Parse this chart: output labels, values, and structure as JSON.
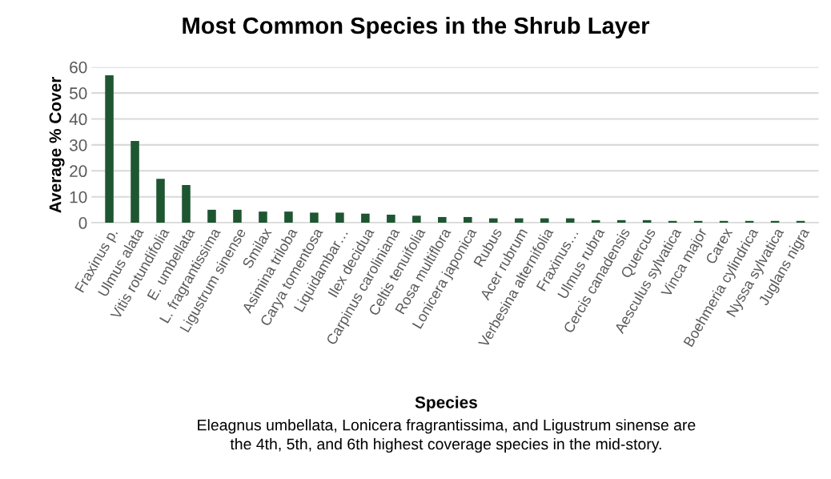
{
  "chart_data": {
    "type": "bar",
    "title": "Most Common Species in the Shrub Layer",
    "xlabel": "Species",
    "ylabel": "Average % Cover",
    "categories": [
      "Fraxinus p.",
      "Ulmus alata",
      "Vitis rotundifolia",
      "E. umbellata",
      "L. fragrantissima",
      "Ligustrum sinense",
      "Smilax",
      "Asimina triloba",
      "Carya tomentosa",
      "Liquidambar…",
      "Ilex decidua",
      "Carpinus caroliniana",
      "Celtis tenuifolia",
      "Rosa multiflora",
      "Lonicera japonica",
      "Rubus",
      "Acer rubrum",
      "Verbesina alternifolia",
      "Fraxinus…",
      "Ulmus rubra",
      "Cercis canadensis",
      "Quercus",
      "Aesculus sylvatica",
      "Vinca major",
      "Carex",
      "Boehmeria cylindrica",
      "Nyssa sylvatica",
      "Juglans nigra"
    ],
    "values": [
      56.8,
      31.5,
      16.9,
      14.5,
      5.0,
      5.0,
      4.3,
      4.3,
      3.9,
      3.9,
      3.5,
      3.1,
      2.7,
      2.2,
      2.2,
      1.7,
      1.7,
      1.7,
      1.7,
      1.0,
      1.0,
      1.0,
      0.7,
      0.7,
      0.7,
      0.7,
      0.7,
      0.7
    ],
    "color": "#1e5631",
    "ylim": [
      0,
      60
    ],
    "yticks": [
      0,
      10,
      20,
      30,
      40,
      50,
      60
    ],
    "grid": "y",
    "annotations": [
      "Eleagnus umbellata, Lonicera fragrantissima, and Ligustrum sinense are\nthe 4th, 5th, and 6th highest coverage species in the mid-story."
    ]
  }
}
